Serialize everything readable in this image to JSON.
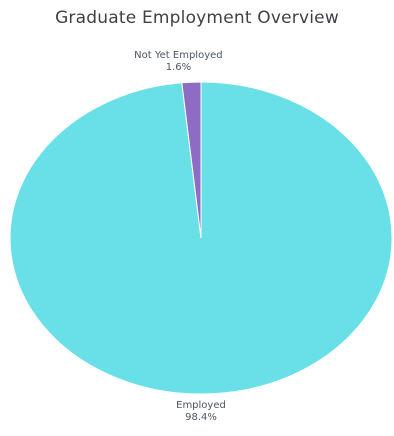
{
  "chart_data": {
    "type": "pie",
    "title": "Graduate Employment Overview",
    "categories": [
      "Employed",
      "Not Yet Employed"
    ],
    "values": [
      98.4,
      1.6
    ],
    "percent_labels": [
      "98.4%",
      "1.6%"
    ],
    "colors": [
      "#69dfe8",
      "#8e6cc4"
    ],
    "start_angle_deg": 0,
    "direction": "counter-clockwise-from-top",
    "legend": "none"
  }
}
